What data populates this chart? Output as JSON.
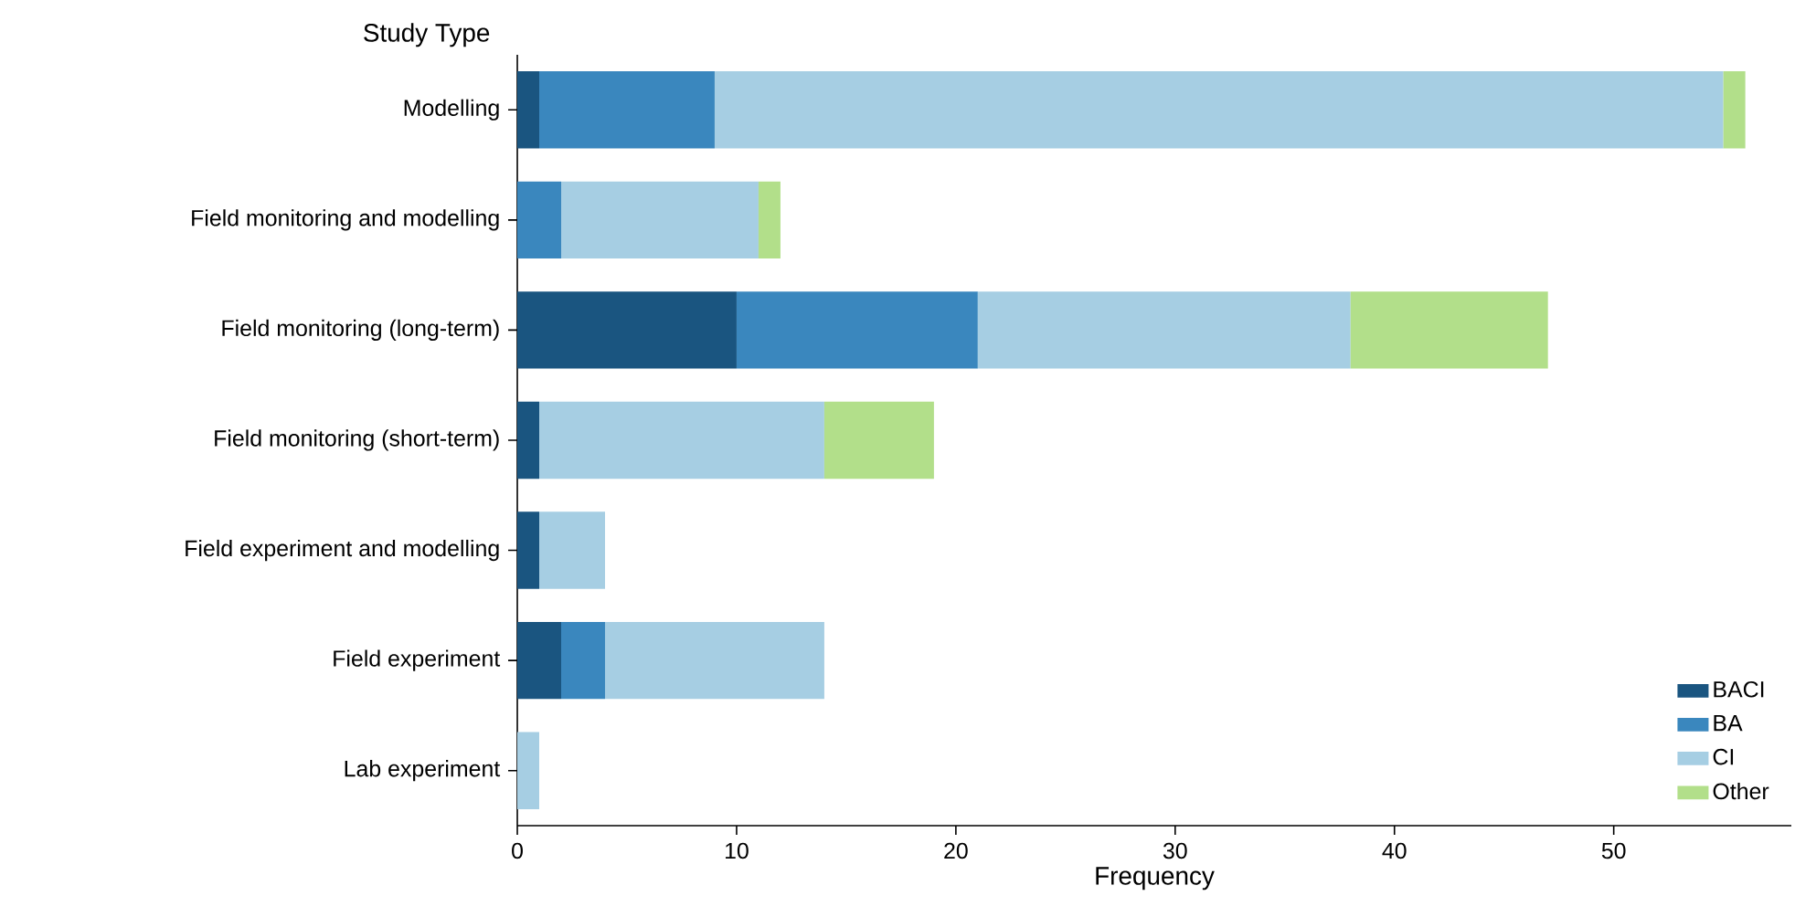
{
  "chart_data": {
    "type": "bar",
    "orientation": "horizontal",
    "stacked": true,
    "ylabel": "Study Type",
    "xlabel": "Frequency",
    "categories": [
      "Modelling",
      "Field monitoring and modelling",
      "Field monitoring (long-term)",
      "Field monitoring (short-term)",
      "Field experiment and modelling",
      "Field experiment",
      "Lab experiment"
    ],
    "series": [
      {
        "name": "BACI",
        "color": "#1a5580",
        "values": [
          1,
          null,
          10,
          1,
          1,
          2,
          null
        ]
      },
      {
        "name": "BA",
        "color": "#3a87be",
        "values": [
          8,
          2,
          11,
          null,
          null,
          2,
          null
        ]
      },
      {
        "name": "CI",
        "color": "#a6cee3",
        "values": [
          46,
          9,
          17,
          13,
          3,
          10,
          1
        ]
      },
      {
        "name": "Other",
        "color": "#b2df8a",
        "values": [
          1,
          1,
          9,
          5,
          null,
          null,
          null
        ]
      }
    ],
    "xlim": [
      0,
      58.1
    ],
    "xticks": [
      0,
      10,
      20,
      30,
      40,
      50
    ],
    "grid": false,
    "legend": "bottom right"
  }
}
